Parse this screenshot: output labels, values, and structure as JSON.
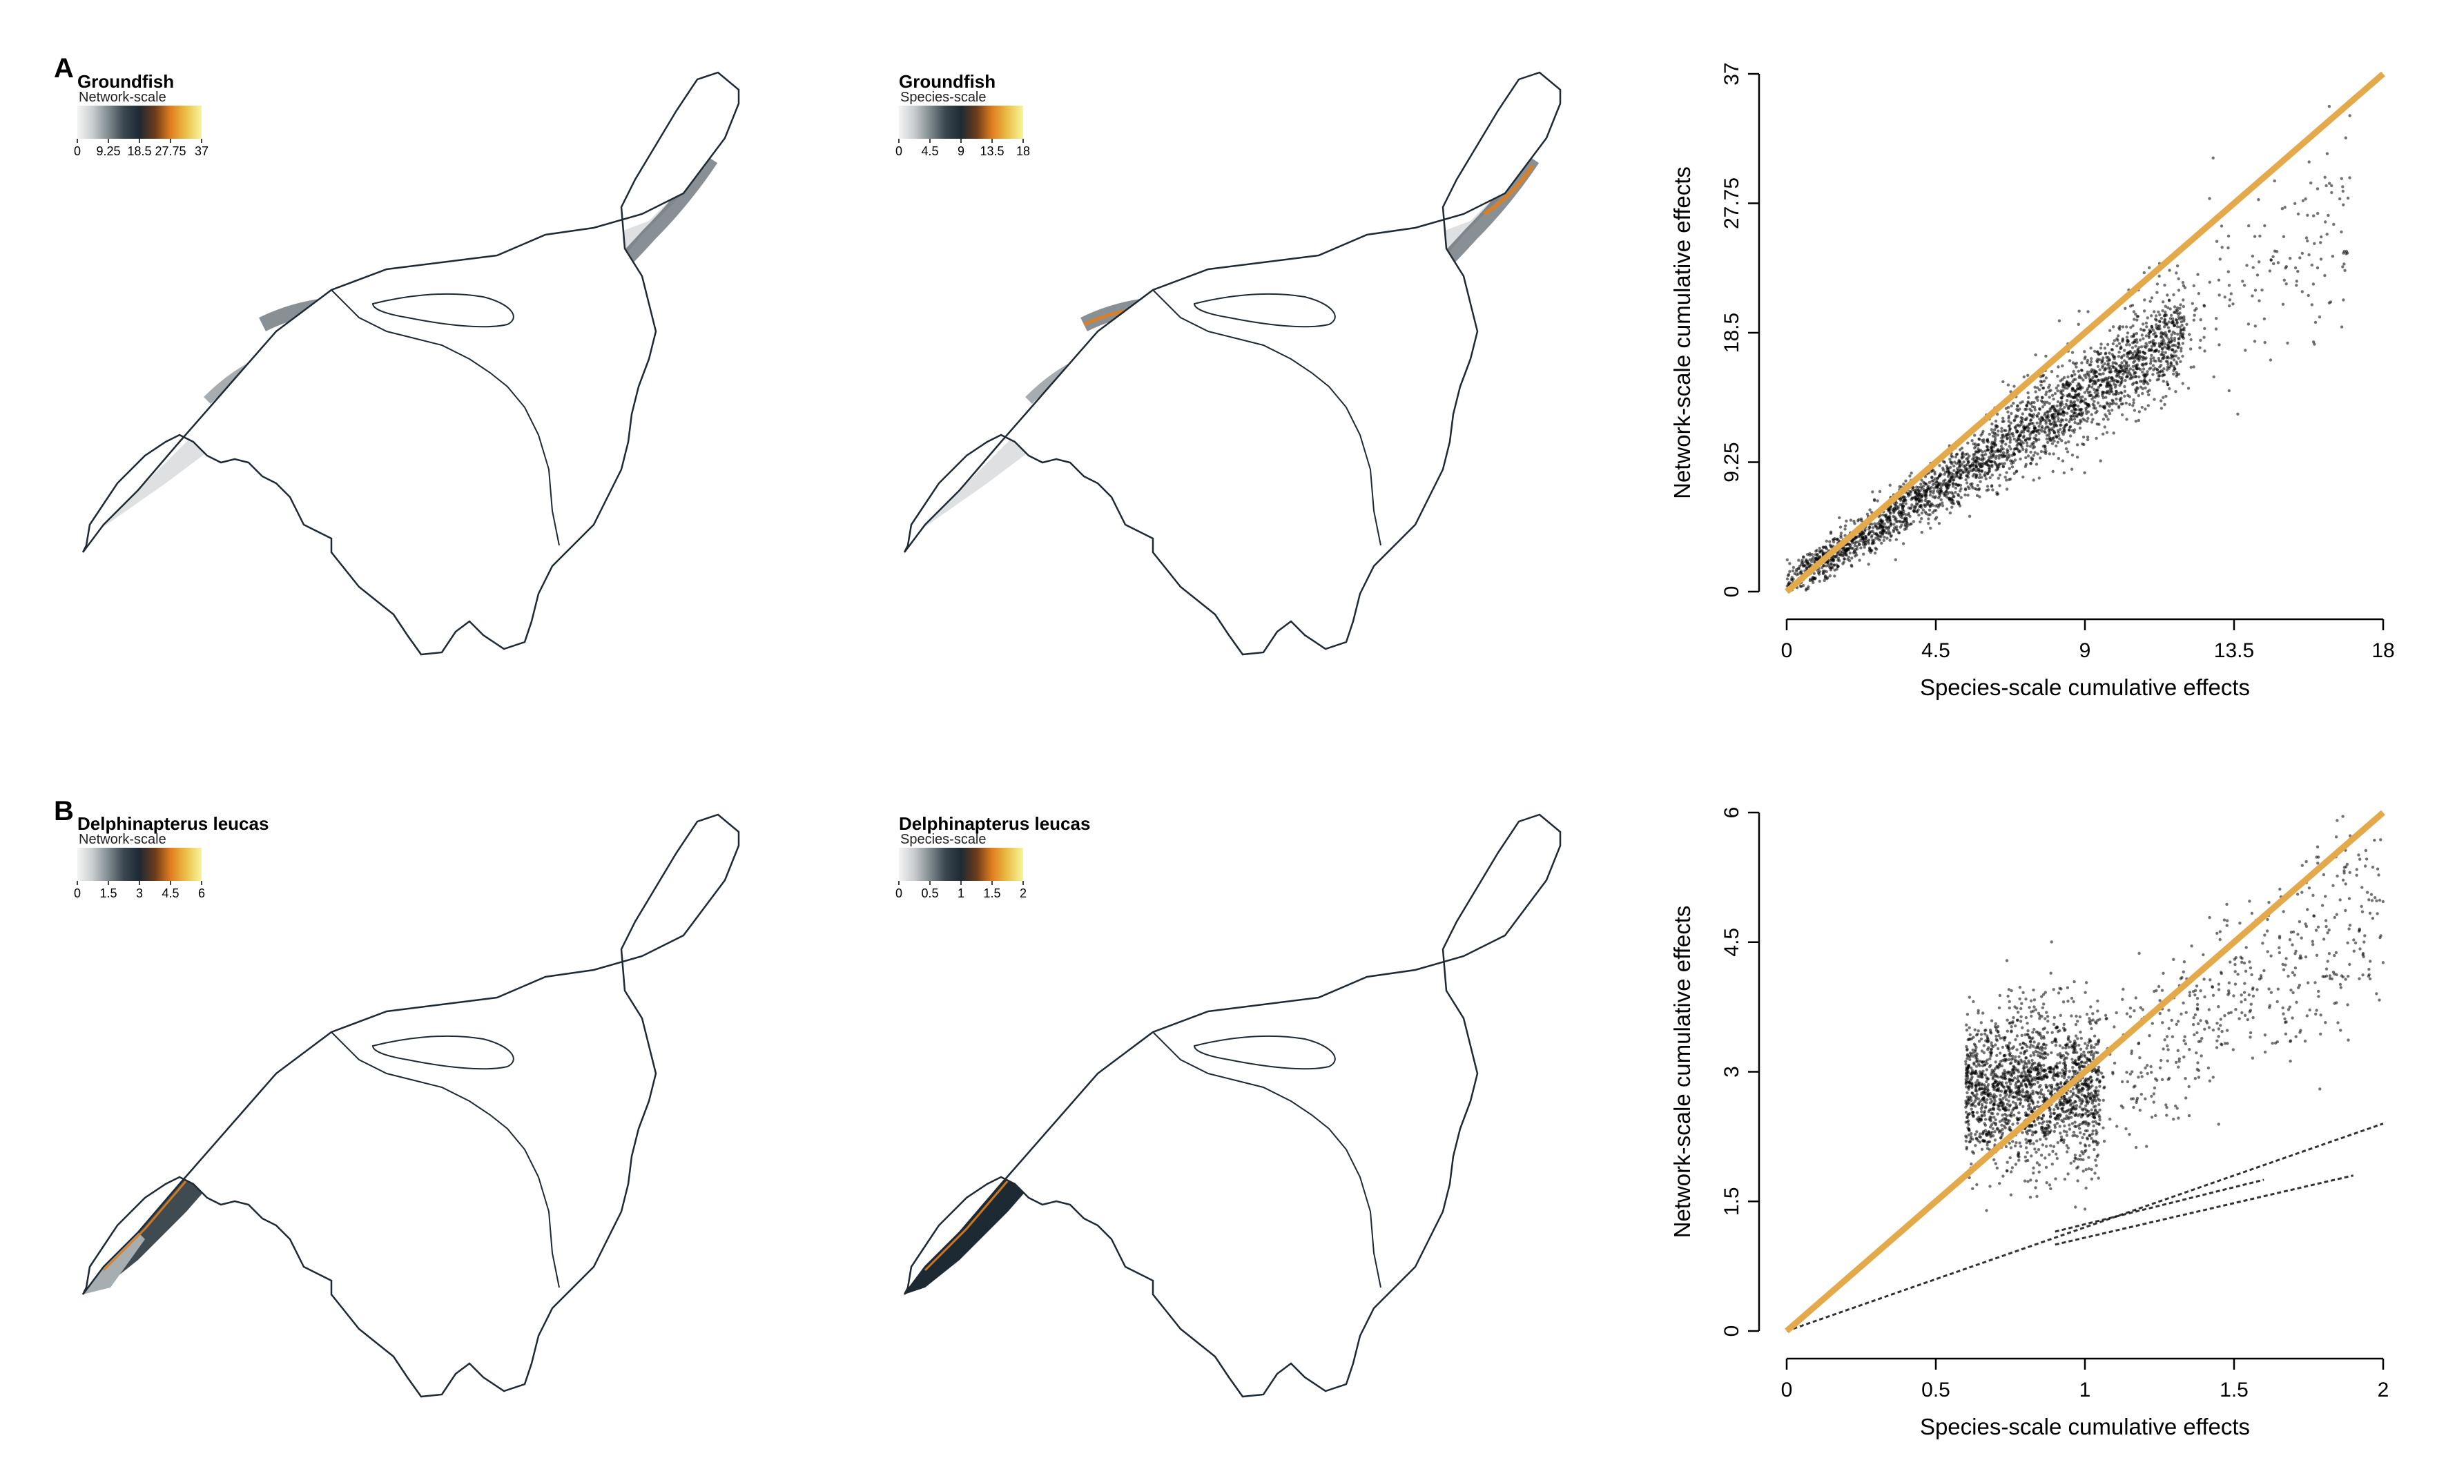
{
  "panel_labels": [
    "A",
    "B"
  ],
  "colors": {
    "ramp": [
      "#f4f4f4",
      "#c9ccce",
      "#7f8b8e",
      "#3b4750",
      "#1e2a33",
      "#6b3b1c",
      "#e07e1f",
      "#eac04a",
      "#f8f59c"
    ],
    "coast": "#1e2a33",
    "one_to_one_line": "#e3a94a",
    "points": "#000000"
  },
  "maps": [
    {
      "id": "a-left",
      "title": "Groundfish",
      "scale_label": "Network-scale",
      "ticks": [
        "0",
        "9.25",
        "18.5",
        "27.75",
        "37"
      ],
      "coverage": "gulf",
      "highlight": "Groundfish network"
    },
    {
      "id": "a-mid",
      "title": "Groundfish",
      "scale_label": "Species-scale",
      "ticks": [
        "0",
        "4.5",
        "9",
        "13.5",
        "18"
      ],
      "coverage": "gulf",
      "highlight": "Groundfish species"
    },
    {
      "id": "b-left",
      "title": "Delphinapterus leucas",
      "scale_label": "Network-scale",
      "ticks": [
        "0",
        "1.5",
        "3",
        "4.5",
        "6"
      ],
      "coverage": "estuary",
      "highlight": "Beluga network"
    },
    {
      "id": "b-mid",
      "title": "Delphinapterus leucas",
      "scale_label": "Species-scale",
      "ticks": [
        "0",
        "0.5",
        "1",
        "1.5",
        "2"
      ],
      "coverage": "estuary",
      "highlight": "Beluga species"
    }
  ],
  "chart_data": [
    {
      "type": "scatter",
      "panel": "A",
      "xlabel": "Species-scale cumulative effects",
      "ylabel": "Network-scale cumulative effects",
      "xlim": [
        0,
        18
      ],
      "ylim": [
        0,
        37
      ],
      "xticks": [
        "0",
        "4.5",
        "9",
        "13.5",
        "18"
      ],
      "yticks": [
        "0",
        "9.25",
        "18.5",
        "27.75",
        "37"
      ],
      "reference_line": {
        "from": [
          0,
          0
        ],
        "to": [
          18,
          37
        ]
      },
      "clusters": [
        {
          "x_range": [
            0,
            12
          ],
          "y_at_x0": 0.5,
          "slope": 1.5,
          "spread": 1.6,
          "n": 2600
        },
        {
          "x_range": [
            6,
            17
          ],
          "y_at_x0": 2.0,
          "slope": 1.45,
          "spread": 2.6,
          "n": 350
        }
      ]
    },
    {
      "type": "scatter",
      "panel": "B",
      "xlabel": "Species-scale cumulative effects",
      "ylabel": "Network-scale cumulative effects",
      "xlim": [
        0,
        2
      ],
      "ylim": [
        0,
        6
      ],
      "xticks": [
        "0",
        "0.5",
        "1",
        "1.5",
        "2"
      ],
      "yticks": [
        "0",
        "1.5",
        "3",
        "4.5",
        "6"
      ],
      "reference_line": {
        "from": [
          0,
          0
        ],
        "to": [
          2,
          6
        ]
      },
      "clusters": [
        {
          "x_range": [
            0.6,
            1.05
          ],
          "y_center": 2.8,
          "spread_y": 0.45,
          "n": 1800
        },
        {
          "x_range": [
            1.0,
            2.0
          ],
          "y_at_x0": 0.4,
          "slope": 2.3,
          "spread": 0.45,
          "n": 500
        }
      ],
      "lines": [
        {
          "from": [
            0,
            0
          ],
          "to": [
            2,
            2.4
          ]
        },
        {
          "from": [
            0.9,
            1.0
          ],
          "to": [
            1.9,
            1.8
          ]
        },
        {
          "from": [
            0.9,
            1.15
          ],
          "to": [
            1.6,
            1.75
          ]
        }
      ]
    }
  ]
}
